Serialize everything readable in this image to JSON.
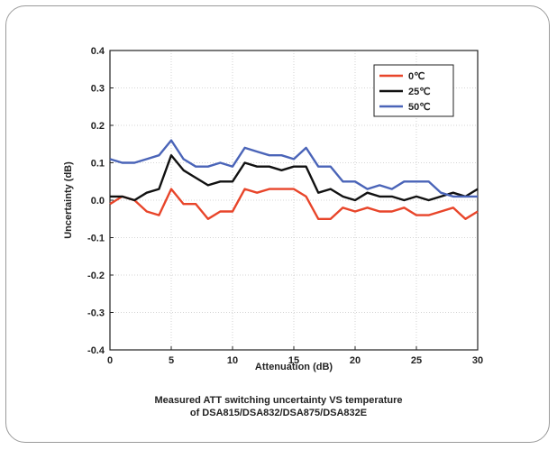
{
  "chart_data": {
    "type": "line",
    "xlabel": "Attenuation (dB)",
    "ylabel": "Uncertainty (dB)",
    "xlim": [
      0,
      30
    ],
    "ylim": [
      -0.4,
      0.4
    ],
    "xticks": [
      0,
      5,
      10,
      15,
      20,
      25,
      30
    ],
    "yticks": [
      -0.4,
      -0.3,
      -0.2,
      -0.1,
      0.0,
      0.1,
      0.2,
      0.3,
      0.4
    ],
    "ytick_labels": [
      "-0.4",
      "-0.3",
      "-0.2",
      "-0.1",
      "0.0",
      "0.1",
      "0.2",
      "0.3",
      "0.4"
    ],
    "x": [
      0,
      1,
      2,
      3,
      4,
      5,
      6,
      7,
      8,
      9,
      10,
      11,
      12,
      13,
      14,
      15,
      16,
      17,
      18,
      19,
      20,
      21,
      22,
      23,
      24,
      25,
      26,
      27,
      28,
      29,
      30
    ],
    "series": [
      {
        "name": "0℃",
        "color": "#e8452a",
        "values": [
          -0.01,
          0.01,
          0.0,
          -0.03,
          -0.04,
          0.03,
          -0.01,
          -0.01,
          -0.05,
          -0.03,
          -0.03,
          0.03,
          0.02,
          0.03,
          0.03,
          0.03,
          0.01,
          -0.05,
          -0.05,
          -0.02,
          -0.03,
          -0.02,
          -0.03,
          -0.03,
          -0.02,
          -0.04,
          -0.04,
          -0.03,
          -0.02,
          -0.05,
          -0.03
        ]
      },
      {
        "name": "25℃",
        "color": "#111111",
        "values": [
          0.01,
          0.01,
          0.0,
          0.02,
          0.03,
          0.12,
          0.08,
          0.06,
          0.04,
          0.05,
          0.05,
          0.1,
          0.09,
          0.09,
          0.08,
          0.09,
          0.09,
          0.02,
          0.03,
          0.01,
          0.0,
          0.02,
          0.01,
          0.01,
          0.0,
          0.01,
          0.0,
          0.01,
          0.02,
          0.01,
          0.03
        ]
      },
      {
        "name": "50℃",
        "color": "#4a64b8",
        "values": [
          0.11,
          0.1,
          0.1,
          0.11,
          0.12,
          0.16,
          0.11,
          0.09,
          0.09,
          0.1,
          0.09,
          0.14,
          0.13,
          0.12,
          0.12,
          0.11,
          0.14,
          0.09,
          0.09,
          0.05,
          0.05,
          0.03,
          0.04,
          0.03,
          0.05,
          0.05,
          0.05,
          0.02,
          0.01,
          0.01,
          0.01
        ]
      }
    ],
    "legend_position": "top-right",
    "grid": true
  },
  "caption": {
    "line1": "Measured ATT switching uncertainty VS temperature",
    "line2": "of DSA815/DSA832/DSA875/DSA832E"
  }
}
